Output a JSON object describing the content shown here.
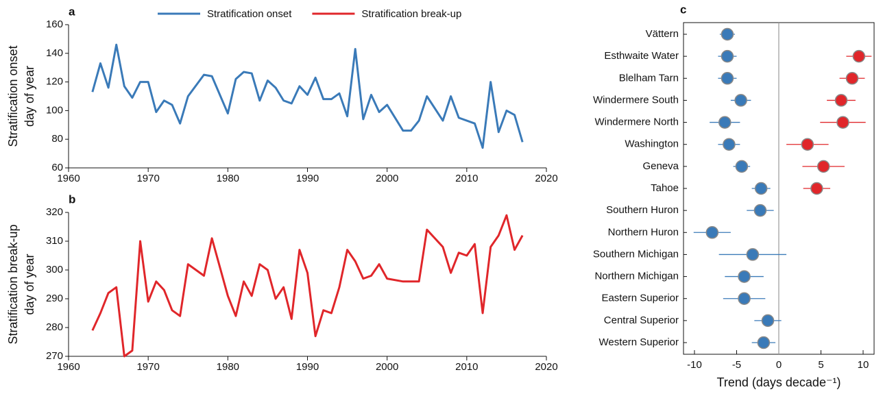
{
  "chart_data": [
    {
      "type": "line",
      "label": "a",
      "ylabel": [
        "Stratification onset",
        "day of year"
      ],
      "xlim": [
        1960,
        2020
      ],
      "xticks": [
        1960,
        1970,
        1980,
        1990,
        2000,
        2010,
        2020
      ],
      "ylim": [
        60,
        160
      ],
      "yticks": [
        60,
        80,
        100,
        120,
        140,
        160
      ],
      "legend": "top",
      "x": [
        1963,
        1964,
        1965,
        1966,
        1967,
        1968,
        1969,
        1970,
        1971,
        1972,
        1973,
        1974,
        1975,
        1977,
        1978,
        1980,
        1981,
        1982,
        1983,
        1984,
        1985,
        1986,
        1987,
        1988,
        1989,
        1990,
        1991,
        1992,
        1993,
        1994,
        1995,
        1996,
        1997,
        1998,
        1999,
        2000,
        2002,
        2003,
        2004,
        2005,
        2007,
        2008,
        2009,
        2011,
        2012,
        2013,
        2014,
        2015,
        2016,
        2017
      ],
      "series": [
        {
          "name": "Stratification onset",
          "color": "#3a7ab8",
          "values": [
            113,
            133,
            116,
            146,
            117,
            109,
            120,
            120,
            99,
            107,
            104,
            91,
            110,
            125,
            124,
            98,
            122,
            127,
            126,
            107,
            121,
            116,
            107,
            105,
            117,
            111,
            123,
            108,
            108,
            112,
            96,
            143,
            94,
            111,
            99,
            104,
            86,
            86,
            93,
            110,
            93,
            110,
            95,
            91,
            74,
            120,
            85,
            100,
            97,
            78
          ]
        }
      ]
    },
    {
      "type": "line",
      "label": "b",
      "ylabel": [
        "Stratification break-up",
        "day of year"
      ],
      "xlim": [
        1960,
        2020
      ],
      "xticks": [
        1960,
        1970,
        1980,
        1990,
        2000,
        2010,
        2020
      ],
      "ylim": [
        270,
        320
      ],
      "yticks": [
        270,
        280,
        290,
        300,
        310,
        320
      ],
      "x": [
        1963,
        1964,
        1965,
        1966,
        1967,
        1968,
        1969,
        1970,
        1971,
        1972,
        1973,
        1974,
        1975,
        1977,
        1978,
        1980,
        1981,
        1982,
        1983,
        1984,
        1985,
        1986,
        1987,
        1988,
        1989,
        1990,
        1991,
        1992,
        1993,
        1994,
        1995,
        1996,
        1997,
        1998,
        1999,
        2000,
        2002,
        2004,
        2005,
        2007,
        2008,
        2009,
        2010,
        2011,
        2012,
        2013,
        2014,
        2015,
        2016,
        2017
      ],
      "series": [
        {
          "name": "Stratification break-up",
          "color": "#e0262a",
          "values": [
            279,
            285,
            292,
            294,
            270,
            272,
            310,
            289,
            296,
            293,
            286,
            284,
            302,
            298,
            311,
            291,
            284,
            296,
            291,
            302,
            300,
            290,
            294,
            283,
            307,
            299,
            277,
            286,
            285,
            294,
            307,
            303,
            297,
            298,
            302,
            297,
            296,
            296,
            314,
            308,
            299,
            306,
            305,
            309,
            285,
            308,
            312,
            319,
            307,
            312
          ]
        }
      ]
    },
    {
      "type": "forest",
      "label": "c",
      "xlabel": "Trend (days decade⁻¹)",
      "xlim": [
        -11.3,
        11.3
      ],
      "xticks": [
        -10,
        -5,
        0,
        5,
        10
      ],
      "categories": [
        "Vättern",
        "Esthwaite Water",
        "Blelham Tarn",
        "Windermere South",
        "Windermere North",
        "Washington",
        "Geneva",
        "Tahoe",
        "Southern Huron",
        "Northern Huron",
        "Southern Michigan",
        "Northern Michigan",
        "Eastern Superior",
        "Central Superior",
        "Western Superior"
      ],
      "series": [
        {
          "name": "Stratification onset",
          "color": "#3a7ab8",
          "values": [
            -6.1,
            -6.1,
            -6.1,
            -4.5,
            -6.4,
            -5.9,
            -4.4,
            -2.1,
            -2.2,
            -7.9,
            -3.1,
            -4.1,
            -4.1,
            -1.3,
            -1.8
          ],
          "errors": [
            0.9,
            1.1,
            1.1,
            1.2,
            1.8,
            1.3,
            1.0,
            1.1,
            1.6,
            2.2,
            4.0,
            2.3,
            2.5,
            1.6,
            1.4
          ]
        },
        {
          "name": "Stratification break-up",
          "color": "#e0262a",
          "values": [
            null,
            9.5,
            8.7,
            7.4,
            7.6,
            3.4,
            5.3,
            4.5,
            null,
            null,
            null,
            null,
            null,
            null,
            null
          ],
          "errors": [
            null,
            1.5,
            1.5,
            1.7,
            2.7,
            2.5,
            2.5,
            1.6,
            null,
            null,
            null,
            null,
            null,
            null,
            null
          ]
        }
      ]
    }
  ]
}
